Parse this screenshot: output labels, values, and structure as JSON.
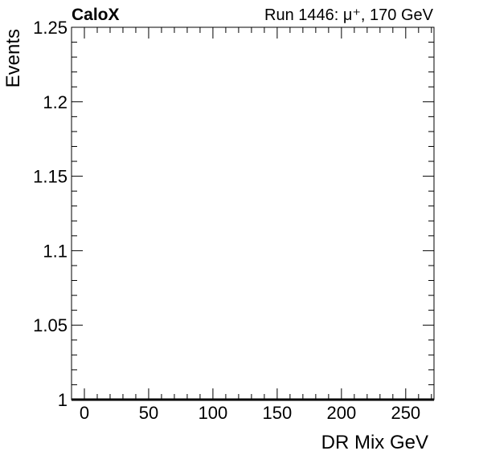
{
  "header": {
    "experiment": "CaloX",
    "run_info": "Run 1446: μ⁺, 170 GeV"
  },
  "chart_data": {
    "type": "line",
    "title": "",
    "xlabel": "DR Mix GeV",
    "ylabel": "Events",
    "xlim": [
      -10,
      272
    ],
    "ylim": [
      1.0,
      1.25
    ],
    "x_ticks": [
      0,
      50,
      100,
      150,
      200,
      250
    ],
    "x_tick_labels": [
      "0",
      "50",
      "100",
      "150",
      "200",
      "250"
    ],
    "x_minor_step": 10,
    "y_ticks": [
      1.0,
      1.05,
      1.1,
      1.15,
      1.2,
      1.25
    ],
    "y_tick_labels": [
      "1",
      "1.05",
      "1.1",
      "1.15",
      "1.2",
      "1.25"
    ],
    "y_minor_step": 0.01,
    "grid": false,
    "legend": "none",
    "series": [
      {
        "x": [
          -10,
          272
        ],
        "y": [
          1.0,
          1.0
        ],
        "color": "#000000"
      }
    ]
  }
}
